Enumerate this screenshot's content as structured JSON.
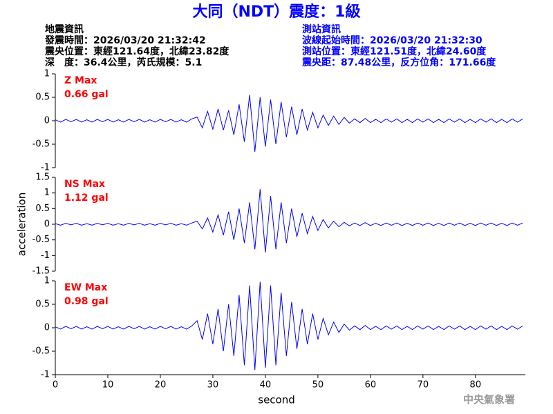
{
  "header": {
    "title": "大同（NDT）震度：1級",
    "left": [
      "地震資訊",
      "發震時間：2026/03/20 21:32:42",
      "震央位置：東經121.64度，北緯23.82度",
      "深　度：36.4公里，芮氏規模：5.1"
    ],
    "right": [
      "測站資訊",
      "波線起始時間：2026/03/20 21:32:30",
      "測站位置：東經121.51度，北緯24.60度",
      "震央距：87.48公里，反方位角：171.66度"
    ],
    "watermark": "中央氣象署"
  },
  "chart_data": [
    {
      "type": "line",
      "name": "Z Max",
      "max_label": "0.66 gal",
      "color": "#0000ff",
      "xlim": [
        0,
        89.5
      ],
      "ylim": [
        -1,
        1
      ],
      "yticks": [
        -1,
        -0.5,
        0,
        0.5,
        1
      ],
      "x": [
        0,
        1,
        2,
        3,
        4,
        5,
        6,
        7,
        8,
        9,
        10,
        11,
        12,
        13,
        14,
        15,
        16,
        17,
        18,
        19,
        20,
        21,
        22,
        23,
        24,
        25,
        26,
        27,
        28,
        29,
        30,
        31,
        32,
        33,
        34,
        35,
        36,
        37,
        38,
        39,
        40,
        41,
        42,
        43,
        44,
        45,
        46,
        47,
        48,
        49,
        50,
        51,
        52,
        53,
        54,
        55,
        56,
        57,
        58,
        59,
        60,
        61,
        62,
        63,
        64,
        65,
        66,
        67,
        68,
        69,
        70,
        71,
        72,
        73,
        74,
        75,
        76,
        77,
        78,
        79,
        80,
        81,
        82,
        83,
        84,
        85,
        86,
        87,
        88,
        89
      ],
      "values": [
        0.02,
        -0.03,
        0.03,
        -0.02,
        0.03,
        -0.03,
        0.02,
        -0.03,
        0.03,
        -0.02,
        0.03,
        -0.03,
        0.02,
        -0.03,
        0.03,
        -0.02,
        0.03,
        -0.03,
        0.02,
        -0.03,
        0.03,
        -0.02,
        0.03,
        -0.03,
        0.02,
        -0.03,
        0.04,
        0.08,
        -0.15,
        0.2,
        -0.18,
        0.25,
        -0.2,
        0.22,
        -0.3,
        0.35,
        -0.45,
        0.55,
        -0.66,
        0.5,
        -0.55,
        0.45,
        -0.5,
        0.4,
        -0.35,
        0.3,
        -0.3,
        0.25,
        -0.2,
        0.18,
        -0.15,
        0.12,
        -0.1,
        0.1,
        -0.08,
        0.07,
        -0.05,
        0.04,
        -0.04,
        0.05,
        -0.04,
        0.03,
        -0.04,
        0.04,
        -0.03,
        0.04,
        -0.04,
        0.03,
        -0.04,
        0.04,
        -0.03,
        0.04,
        -0.04,
        0.03,
        -0.04,
        0.04,
        -0.03,
        0.04,
        -0.04,
        0.03,
        -0.04,
        0.04,
        -0.03,
        0.04,
        -0.04,
        0.03,
        -0.04,
        0.04,
        -0.03,
        0.04
      ]
    },
    {
      "type": "line",
      "name": "NS Max",
      "max_label": "1.12 gal",
      "color": "#0000ff",
      "ylabel": "acceleration",
      "xlim": [
        0,
        89.5
      ],
      "ylim": [
        -1.5,
        1.5
      ],
      "yticks": [
        -1.5,
        -1,
        -0.5,
        0,
        0.5,
        1,
        1.5
      ],
      "x": [
        0,
        1,
        2,
        3,
        4,
        5,
        6,
        7,
        8,
        9,
        10,
        11,
        12,
        13,
        14,
        15,
        16,
        17,
        18,
        19,
        20,
        21,
        22,
        23,
        24,
        25,
        26,
        27,
        28,
        29,
        30,
        31,
        32,
        33,
        34,
        35,
        36,
        37,
        38,
        39,
        40,
        41,
        42,
        43,
        44,
        45,
        46,
        47,
        48,
        49,
        50,
        51,
        52,
        53,
        54,
        55,
        56,
        57,
        58,
        59,
        60,
        61,
        62,
        63,
        64,
        65,
        66,
        67,
        68,
        69,
        70,
        71,
        72,
        73,
        74,
        75,
        76,
        77,
        78,
        79,
        80,
        81,
        82,
        83,
        84,
        85,
        86,
        87,
        88,
        89
      ],
      "values": [
        0.02,
        -0.03,
        0.03,
        -0.02,
        0.03,
        -0.03,
        0.02,
        -0.03,
        0.03,
        -0.02,
        0.03,
        -0.03,
        0.02,
        -0.03,
        0.03,
        -0.02,
        0.03,
        -0.03,
        0.02,
        -0.03,
        0.03,
        -0.02,
        0.03,
        -0.03,
        0.02,
        -0.03,
        0.04,
        0.1,
        -0.15,
        0.2,
        -0.25,
        0.3,
        -0.35,
        0.4,
        -0.5,
        0.5,
        -0.6,
        0.7,
        -0.8,
        1.12,
        -0.9,
        0.9,
        -0.8,
        0.7,
        -0.6,
        0.5,
        -0.4,
        0.35,
        -0.3,
        0.25,
        -0.2,
        0.15,
        -0.12,
        0.1,
        -0.08,
        0.06,
        -0.05,
        0.04,
        -0.04,
        0.05,
        -0.04,
        0.03,
        -0.04,
        0.04,
        -0.03,
        0.04,
        -0.04,
        0.03,
        -0.04,
        0.04,
        -0.03,
        0.04,
        -0.04,
        0.03,
        -0.04,
        0.04,
        -0.03,
        0.04,
        -0.04,
        0.03,
        -0.04,
        0.04,
        -0.03,
        0.04,
        -0.04,
        0.03,
        -0.04,
        0.04,
        -0.03,
        0.04
      ]
    },
    {
      "type": "line",
      "name": "EW Max",
      "max_label": "0.98 gal",
      "color": "#0000ff",
      "xlabel": "second",
      "xlim": [
        0,
        89.5
      ],
      "ylim": [
        -1,
        1
      ],
      "yticks": [
        -1,
        -0.5,
        0,
        0.5,
        1
      ],
      "xticks": [
        0,
        10,
        20,
        30,
        40,
        50,
        60,
        70,
        80
      ],
      "x": [
        0,
        1,
        2,
        3,
        4,
        5,
        6,
        7,
        8,
        9,
        10,
        11,
        12,
        13,
        14,
        15,
        16,
        17,
        18,
        19,
        20,
        21,
        22,
        23,
        24,
        25,
        26,
        27,
        28,
        29,
        30,
        31,
        32,
        33,
        34,
        35,
        36,
        37,
        38,
        39,
        40,
        41,
        42,
        43,
        44,
        45,
        46,
        47,
        48,
        49,
        50,
        51,
        52,
        53,
        54,
        55,
        56,
        57,
        58,
        59,
        60,
        61,
        62,
        63,
        64,
        65,
        66,
        67,
        68,
        69,
        70,
        71,
        72,
        73,
        74,
        75,
        76,
        77,
        78,
        79,
        80,
        81,
        82,
        83,
        84,
        85,
        86,
        87,
        88,
        89
      ],
      "values": [
        0.02,
        -0.03,
        0.03,
        -0.02,
        0.03,
        -0.03,
        0.02,
        -0.03,
        0.03,
        -0.02,
        0.03,
        -0.03,
        0.02,
        -0.03,
        0.03,
        -0.02,
        0.03,
        -0.03,
        0.02,
        -0.03,
        0.03,
        -0.02,
        0.03,
        -0.03,
        0.02,
        -0.03,
        0.04,
        0.15,
        -0.25,
        0.3,
        -0.35,
        0.4,
        -0.5,
        0.5,
        -0.6,
        0.7,
        -0.8,
        0.9,
        -0.9,
        0.98,
        -0.85,
        0.9,
        -0.8,
        0.75,
        -0.6,
        0.55,
        -0.45,
        0.4,
        -0.35,
        0.3,
        -0.25,
        0.2,
        -0.15,
        0.12,
        -0.1,
        0.08,
        -0.05,
        0.04,
        -0.04,
        0.05,
        -0.04,
        0.03,
        -0.04,
        0.04,
        -0.03,
        0.04,
        -0.04,
        0.03,
        -0.04,
        0.04,
        -0.03,
        0.04,
        -0.04,
        0.03,
        -0.04,
        0.04,
        -0.03,
        0.04,
        -0.04,
        0.03,
        -0.04,
        0.04,
        -0.03,
        0.04,
        -0.04,
        0.03,
        -0.04,
        0.04,
        -0.03,
        0.04
      ]
    }
  ]
}
